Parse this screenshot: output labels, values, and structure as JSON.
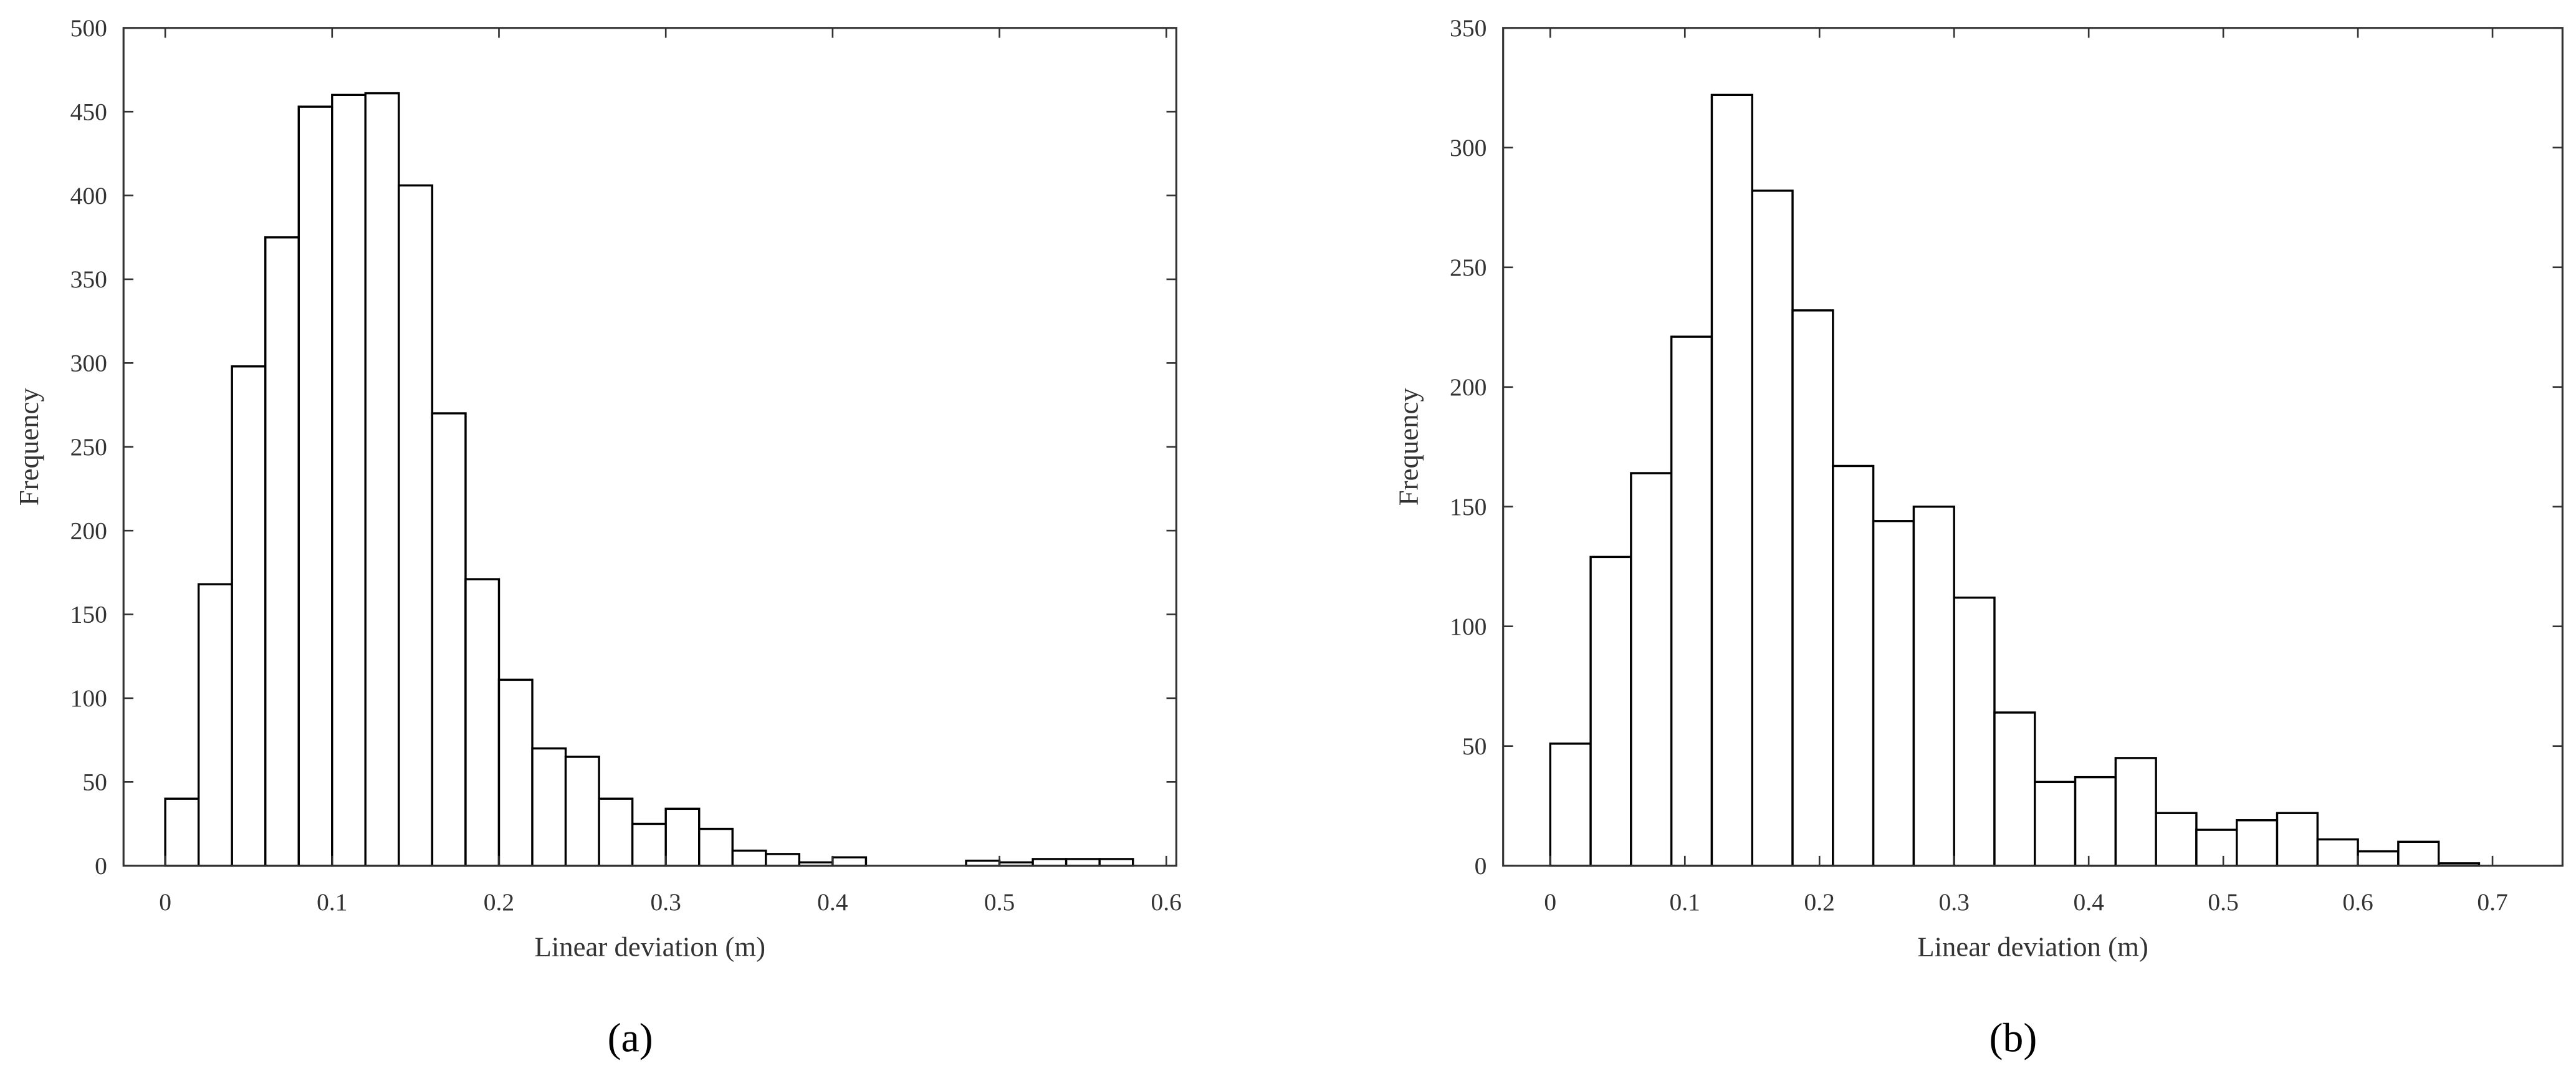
{
  "chart_data": [
    {
      "type": "histogram",
      "xlabel": "Linear deviation (m)",
      "ylabel": "Frequency",
      "caption": "(a)",
      "bins": [
        0,
        0.02,
        0.04,
        0.06,
        0.08,
        0.1,
        0.12,
        0.14,
        0.16,
        0.18,
        0.2,
        0.22,
        0.24,
        0.26,
        0.28,
        0.3,
        0.32,
        0.34,
        0.36,
        0.38,
        0.4,
        0.42,
        0.44,
        0.46,
        0.48,
        0.5,
        0.52,
        0.54,
        0.56,
        0.58
      ],
      "values": [
        40,
        168,
        298,
        375,
        453,
        460,
        461,
        406,
        270,
        171,
        111,
        70,
        65,
        40,
        25,
        34,
        22,
        9,
        7,
        2,
        5,
        0,
        0,
        0,
        3,
        2,
        4,
        4,
        4
      ],
      "color": "#ffffff",
      "edge_color": "#000000",
      "xlim": [
        -0.025,
        0.606
      ],
      "xticks": [
        0,
        0.1,
        0.2,
        0.3,
        0.4,
        0.5,
        0.6
      ],
      "ylim": [
        0,
        500
      ],
      "yticks": [
        0,
        50,
        100,
        150,
        200,
        250,
        300,
        350,
        400,
        450,
        500
      ]
    },
    {
      "type": "histogram",
      "xlabel": "Linear deviation (m)",
      "ylabel": "Frequency",
      "caption": "(b)",
      "bins": [
        0,
        0.03,
        0.06,
        0.09,
        0.12,
        0.15,
        0.18,
        0.21,
        0.24,
        0.27,
        0.3,
        0.33,
        0.36,
        0.39,
        0.42,
        0.45,
        0.48,
        0.51,
        0.54,
        0.57,
        0.6,
        0.63,
        0.66,
        0.69
      ],
      "values": [
        51,
        129,
        164,
        221,
        322,
        282,
        232,
        167,
        144,
        150,
        112,
        64,
        35,
        37,
        45,
        22,
        15,
        19,
        22,
        11,
        6,
        10,
        1
      ],
      "color": "#ffffff",
      "edge_color": "#000000",
      "xlim": [
        -0.035,
        0.752
      ],
      "xticks": [
        0,
        0.1,
        0.2,
        0.3,
        0.4,
        0.5,
        0.6,
        0.7
      ],
      "ylim": [
        0,
        350
      ],
      "yticks": [
        0,
        50,
        100,
        150,
        200,
        250,
        300,
        350
      ]
    }
  ]
}
